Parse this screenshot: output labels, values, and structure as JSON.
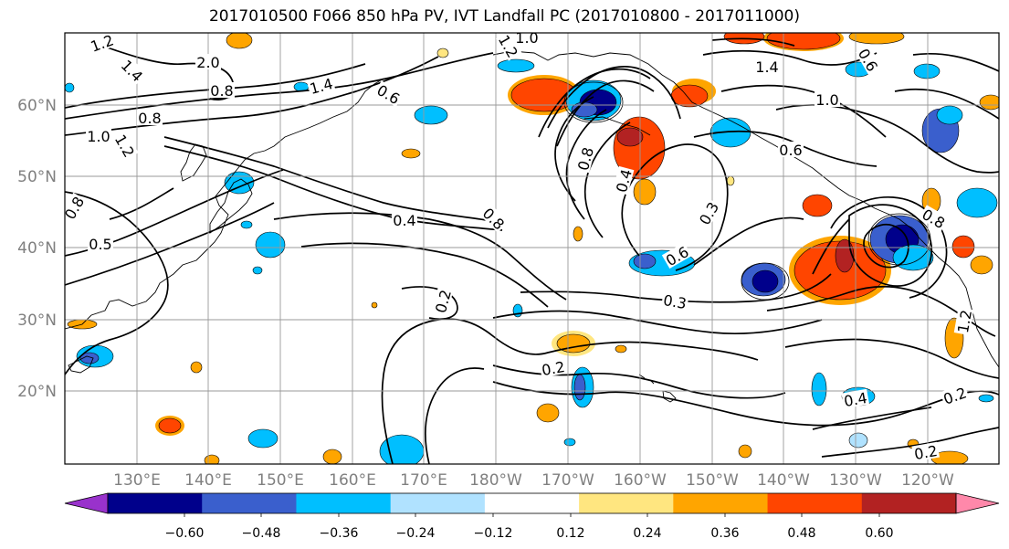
{
  "title": "2017010500 F066 850 hPa PV, IVT Landfall PC (2017010800 - 2017011000)",
  "lat_labels": [
    "60°N",
    "50°N",
    "40°N",
    "30°N",
    "20°N"
  ],
  "lon_labels": [
    "130°E",
    "140°E",
    "150°E",
    "160°E",
    "170°E",
    "180°W",
    "170°W",
    "160°W",
    "150°W",
    "140°W",
    "130°W",
    "120°W"
  ],
  "contour_labels": [
    "1.2",
    "1.4",
    "1.2",
    "2.0",
    "0.8",
    "1.4",
    "1.0",
    "0.6",
    "0.8",
    "1.0",
    "1.2",
    "0.8",
    "0.5",
    "0.4",
    "0.8",
    "0.2",
    "0.8",
    "0.4",
    "0.6",
    "0.3",
    "0.3",
    "0.2",
    "0.4",
    "0.2",
    "0.2",
    "1.4",
    "1.0",
    "0.6",
    "0.6",
    "0.8",
    "1.2"
  ],
  "colorbar": {
    "ticks": [
      "−0.60",
      "−0.48",
      "−0.36",
      "−0.24",
      "−0.12",
      "0.12",
      "0.24",
      "0.36",
      "0.48",
      "0.60"
    ],
    "colors": [
      "#9932cc",
      "#00008b",
      "#3a5fcd",
      "#00bfff",
      "#b0e2ff",
      "#ffffff",
      "#ffe680",
      "#ffa500",
      "#ff4500",
      "#b22222",
      "#ff88aa"
    ]
  },
  "palette": {
    "neg_light": "#b0e2ff",
    "neg_mid": "#00bfff",
    "neg_strong": "#3a5fcd",
    "neg_deep": "#00008b",
    "pos_light": "#ffe680",
    "pos_mid": "#ffa500",
    "pos_strong": "#ff4500",
    "pos_deep": "#b22222"
  }
}
